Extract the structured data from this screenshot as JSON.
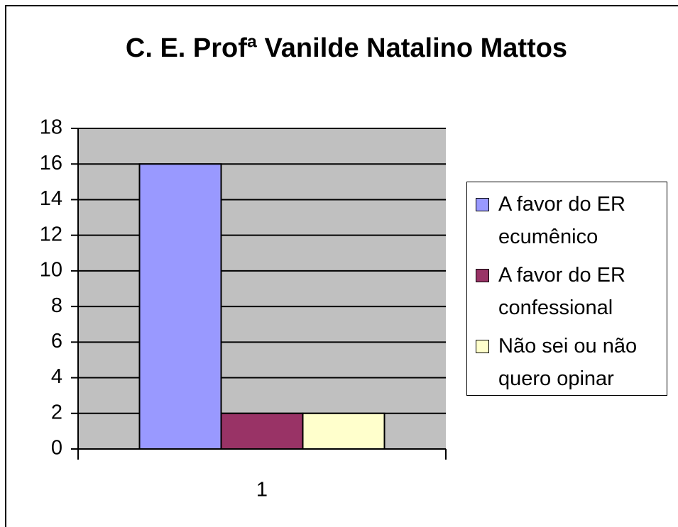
{
  "chart_data": {
    "type": "bar",
    "title": "C. E. Profª Vanilde Natalino Mattos",
    "categories": [
      "1"
    ],
    "series": [
      {
        "name": "A favor do ER ecumênico",
        "color": "#9999ff",
        "values": [
          16
        ]
      },
      {
        "name": "A favor do ER confessional",
        "color": "#993366",
        "values": [
          2
        ]
      },
      {
        "name": "Não sei ou não quero opinar",
        "color": "#ffffcc",
        "values": [
          2
        ]
      }
    ],
    "ylim": [
      0,
      18
    ],
    "yticks": [
      0,
      2,
      4,
      6,
      8,
      10,
      12,
      14,
      16,
      18
    ],
    "grid": true,
    "legend": "right"
  }
}
